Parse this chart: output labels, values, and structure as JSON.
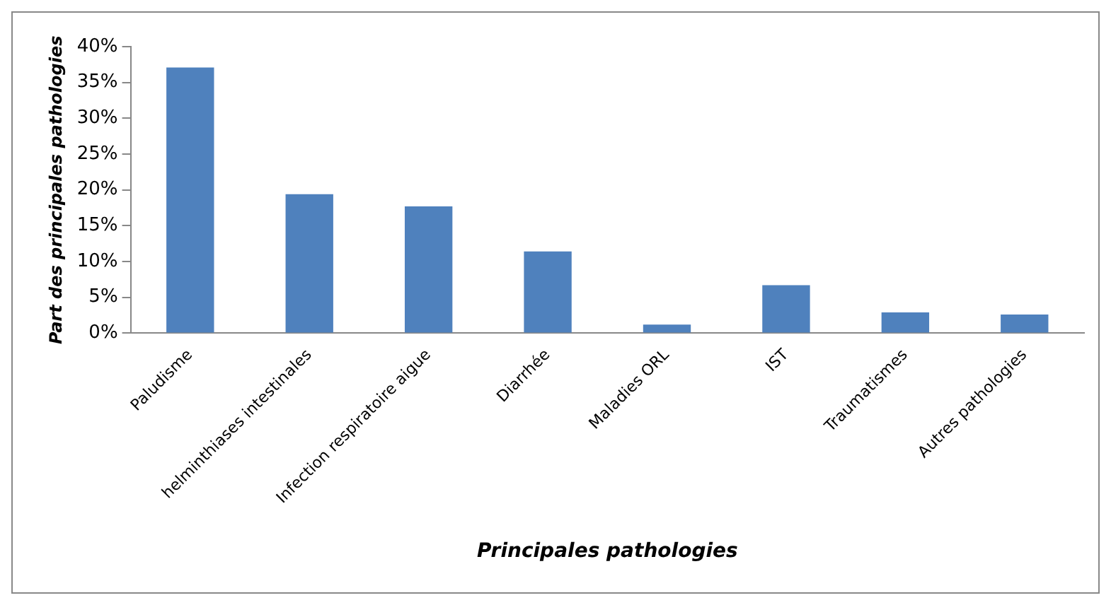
{
  "chart_data": {
    "type": "bar",
    "xlabel": "Principales pathologies",
    "ylabel": "Part des principales pathologies",
    "categories": [
      "Paludisme",
      "helminthiases intestinales",
      "Infection respiratoire aigue",
      "Diarrhée",
      "Maladies ORL",
      "IST",
      "Traumatismes",
      "Autres pathologies"
    ],
    "values": [
      37.1,
      19.4,
      17.7,
      11.4,
      1.2,
      6.7,
      2.9,
      2.6
    ],
    "color": "#4f81bd",
    "ylim": [
      0,
      40
    ],
    "yticks": [
      {
        "value": 0,
        "label": "0%"
      },
      {
        "value": 5,
        "label": "5%"
      },
      {
        "value": 10,
        "label": "10%"
      },
      {
        "value": 15,
        "label": "15%"
      },
      {
        "value": 20,
        "label": "20%"
      },
      {
        "value": 25,
        "label": "25%"
      },
      {
        "value": 30,
        "label": "30%"
      },
      {
        "value": 35,
        "label": "35%"
      },
      {
        "value": 40,
        "label": "40%"
      }
    ],
    "grid": false,
    "legend": false
  }
}
